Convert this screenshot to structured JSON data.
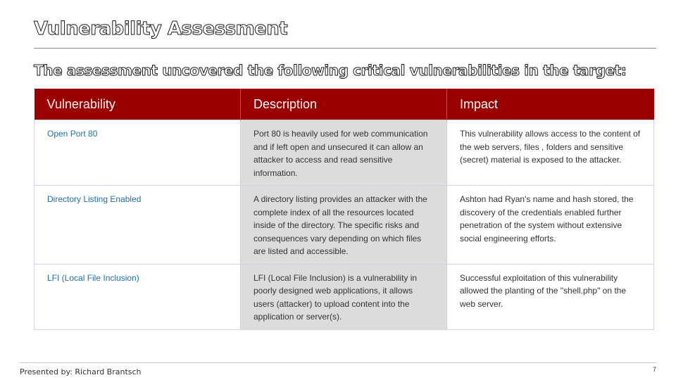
{
  "slide": {
    "title": "Vulnerability Assessment",
    "subtitle": "The assessment uncovered the following critical vulnerabilities in the target:",
    "presenter": "Presented by: Richard Brantsch",
    "page_number": "7"
  },
  "table": {
    "headers": [
      "Vulnerability",
      "Description",
      "Impact"
    ],
    "rows": [
      {
        "name": "Open Port 80",
        "description": "Port 80 is heavily used for web communication and if left open and unsecured it can allow an attacker to access and read sensitive information.",
        "impact": "This vulnerability allows access to the content of the web servers, files , folders and sensitive (secret) material is exposed to the attacker."
      },
      {
        "name": "Directory Listing Enabled",
        "description": "A directory listing provides an attacker with the complete index of all the resources located inside of the directory. The specific risks and consequences vary depending on which files are listed and accessible.",
        "impact": "Ashton had Ryan's name and hash stored, the discovery of the credentials enabled further penetration of the system without extensive social engineering efforts."
      },
      {
        "name": "LFI (Local File Inclusion)",
        "description": "LFI (Local File Inclusion) is a vulnerability in poorly designed web applications, it allows users (attacker) to upload content into the application or server(s).",
        "impact": "Successful exploitation of this vulnerability allowed the planting of the \"shell.php\" on the web server."
      }
    ]
  },
  "colors": {
    "header_bg": "#9b0000",
    "name_text": "#1f6fb5",
    "description_bg": "#dcdcdc"
  }
}
